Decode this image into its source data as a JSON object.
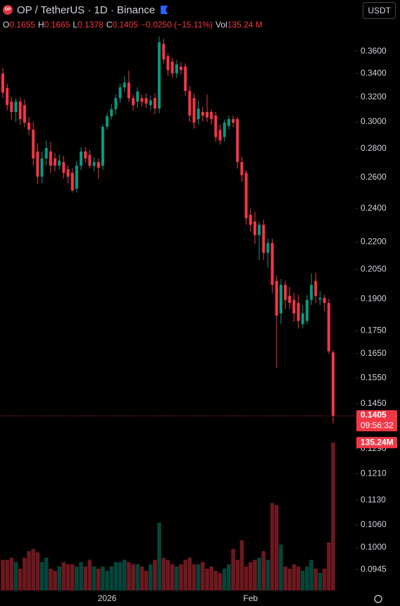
{
  "chart_data": {
    "type": "candlestick",
    "logo": "OP",
    "title": "OP / TetherUS · 1D · Binance",
    "currency": "USDT",
    "legend": [
      {
        "label": "O",
        "value": "0.1655"
      },
      {
        "label": "H",
        "value": "0.1665"
      },
      {
        "label": "L",
        "value": "0.1378"
      },
      {
        "label": "C",
        "value": "0.1405"
      }
    ],
    "change": "−0.0250 (−15.11%)",
    "volume_label": "Vol",
    "volume_value": "135.24 M",
    "last_price_label": "0.1405",
    "countdown": "09:56:32",
    "last_volume_label": "135.24M",
    "up_color": "#089981",
    "down_color": "#f23645",
    "log_scale": true,
    "ylim": [
      0.0895,
      0.411
    ],
    "volume_ylim": [
      0,
      540
    ],
    "yticks": [
      {
        "value": 0.36,
        "label": "0.3600"
      },
      {
        "value": 0.34,
        "label": "0.3400"
      },
      {
        "value": 0.32,
        "label": "0.3200"
      },
      {
        "value": 0.3,
        "label": "0.3000"
      },
      {
        "value": 0.28,
        "label": "0.2800"
      },
      {
        "value": 0.26,
        "label": "0.2600"
      },
      {
        "value": 0.24,
        "label": "0.2400"
      },
      {
        "value": 0.22,
        "label": "0.2200"
      },
      {
        "value": 0.205,
        "label": "0.2050"
      },
      {
        "value": 0.19,
        "label": "0.1900"
      },
      {
        "value": 0.175,
        "label": "0.1750"
      },
      {
        "value": 0.165,
        "label": "0.1650"
      },
      {
        "value": 0.155,
        "label": "0.1550"
      },
      {
        "value": 0.145,
        "label": "0.1450"
      },
      {
        "value": 0.129,
        "label": "0.1290"
      },
      {
        "value": 0.121,
        "label": "0.1210"
      },
      {
        "value": 0.113,
        "label": "0.1130"
      },
      {
        "value": 0.106,
        "label": "0.1060"
      },
      {
        "value": 0.1,
        "label": "0.1000"
      },
      {
        "value": 0.0945,
        "label": "0.0945"
      }
    ],
    "categories": [
      null,
      null,
      null,
      null,
      null,
      null,
      null,
      null,
      null,
      null,
      null,
      null,
      null,
      null,
      null,
      null,
      null,
      null,
      null,
      null,
      null,
      null,
      null,
      null,
      "2026",
      null,
      null,
      null,
      null,
      null,
      null,
      null,
      null,
      null,
      null,
      null,
      null,
      null,
      null,
      null,
      null,
      null,
      null,
      null,
      null,
      null,
      null,
      null,
      null,
      null,
      null,
      null,
      null,
      null,
      null,
      null,
      null,
      "Feb",
      null,
      null,
      null,
      null,
      null,
      null,
      null,
      null,
      null,
      null,
      null,
      null,
      null,
      null,
      null,
      null,
      null,
      null,
      null
    ],
    "open": [
      0.34,
      0.3275,
      0.3161,
      0.3078,
      0.3161,
      0.3133,
      0.2995,
      0.2941,
      0.278,
      0.2605,
      0.273,
      0.278,
      0.273,
      0.268,
      0.2705,
      0.2655,
      0.263,
      0.2525,
      0.268,
      0.278,
      0.2755,
      0.2678,
      0.2705,
      0.268,
      0.2963,
      0.3045,
      0.31,
      0.319,
      0.328,
      0.332,
      0.319,
      0.3161,
      0.319,
      0.319,
      0.3133,
      0.319,
      0.3106,
      0.367,
      0.3555,
      0.3505,
      0.34,
      0.346,
      0.346,
      0.325,
      0.319,
      0.3022,
      0.3078,
      0.3078,
      0.3078,
      0.305,
      0.294,
      0.2885,
      0.297,
      0.3022,
      0.3022,
      0.2705,
      0.263,
      0.236,
      0.232,
      0.224,
      0.23,
      0.214,
      0.2195,
      0.199,
      0.183,
      0.197,
      0.1915,
      0.1895,
      0.188,
      0.178,
      0.1795,
      0.1895,
      0.199,
      0.1897,
      0.1905,
      0.188,
      0.1655
    ],
    "high": [
      0.345,
      0.331,
      0.32,
      0.319,
      0.32,
      0.318,
      0.304,
      0.3,
      0.284,
      0.278,
      0.286,
      0.285,
      0.277,
      0.276,
      0.275,
      0.268,
      0.266,
      0.271,
      0.281,
      0.281,
      0.279,
      0.274,
      0.273,
      0.298,
      0.307,
      0.314,
      0.322,
      0.331,
      0.338,
      0.3425,
      0.322,
      0.328,
      0.322,
      0.323,
      0.321,
      0.323,
      0.374,
      0.372,
      0.358,
      0.354,
      0.352,
      0.35,
      0.349,
      0.329,
      0.323,
      0.317,
      0.312,
      0.322,
      0.31,
      0.308,
      0.298,
      0.302,
      0.305,
      0.305,
      0.304,
      0.274,
      0.265,
      0.24,
      0.238,
      0.232,
      0.233,
      0.222,
      0.222,
      0.202,
      0.2,
      0.199,
      0.196,
      0.193,
      0.192,
      0.187,
      0.192,
      0.203,
      0.203,
      0.194,
      0.192,
      0.19,
      0.1665
    ],
    "low": [
      0.319,
      0.309,
      0.302,
      0.3,
      0.298,
      0.296,
      0.29,
      0.268,
      0.2555,
      0.256,
      0.268,
      0.263,
      0.264,
      0.265,
      0.259,
      0.256,
      0.25,
      0.25,
      0.265,
      0.27,
      0.266,
      0.264,
      0.259,
      0.265,
      0.294,
      0.302,
      0.306,
      0.315,
      0.324,
      0.316,
      0.309,
      0.311,
      0.312,
      0.311,
      0.309,
      0.306,
      0.307,
      0.349,
      0.338,
      0.336,
      0.336,
      0.339,
      0.321,
      0.3,
      0.295,
      0.298,
      0.3,
      0.3,
      0.298,
      0.285,
      0.283,
      0.285,
      0.294,
      0.296,
      0.266,
      0.257,
      0.23,
      0.226,
      0.219,
      0.21,
      0.21,
      0.206,
      0.193,
      0.159,
      0.178,
      0.185,
      0.185,
      0.179,
      0.176,
      0.176,
      0.178,
      0.187,
      0.188,
      0.187,
      0.184,
      0.165,
      0.1378
    ],
    "close": [
      0.3236,
      0.3133,
      0.3078,
      0.3161,
      0.3022,
      0.2995,
      0.2941,
      0.273,
      0.2605,
      0.273,
      0.2805,
      0.268,
      0.268,
      0.2715,
      0.263,
      0.2605,
      0.2515,
      0.268,
      0.278,
      0.273,
      0.268,
      0.2705,
      0.2665,
      0.2963,
      0.3045,
      0.31,
      0.319,
      0.328,
      0.332,
      0.319,
      0.3133,
      0.3245,
      0.3161,
      0.3145,
      0.3172,
      0.3106,
      0.3685,
      0.3525,
      0.343,
      0.34,
      0.348,
      0.343,
      0.325,
      0.305,
      0.2995,
      0.3106,
      0.305,
      0.3035,
      0.3022,
      0.2885,
      0.286,
      0.2995,
      0.3022,
      0.2995,
      0.2705,
      0.2615,
      0.234,
      0.23,
      0.224,
      0.23,
      0.214,
      0.2195,
      0.197,
      0.182,
      0.197,
      0.1895,
      0.188,
      0.183,
      0.1795,
      0.183,
      0.1895,
      0.197,
      0.1915,
      0.1905,
      0.188,
      0.166,
      0.1405
    ],
    "volume": [
      28,
      28,
      30,
      26,
      20,
      30,
      36,
      38,
      35,
      26,
      30,
      20,
      18,
      22,
      26,
      24,
      24,
      22,
      26,
      22,
      28,
      22,
      20,
      22,
      18,
      22,
      26,
      26,
      28,
      26,
      24,
      24,
      22,
      18,
      24,
      28,
      62,
      30,
      28,
      24,
      22,
      24,
      28,
      30,
      24,
      24,
      26,
      20,
      22,
      18,
      16,
      20,
      24,
      38,
      28,
      46,
      22,
      26,
      28,
      30,
      36,
      28,
      80,
      78,
      42,
      22,
      20,
      24,
      22,
      18,
      22,
      28,
      20,
      16,
      20,
      44,
      135.24
    ]
  }
}
